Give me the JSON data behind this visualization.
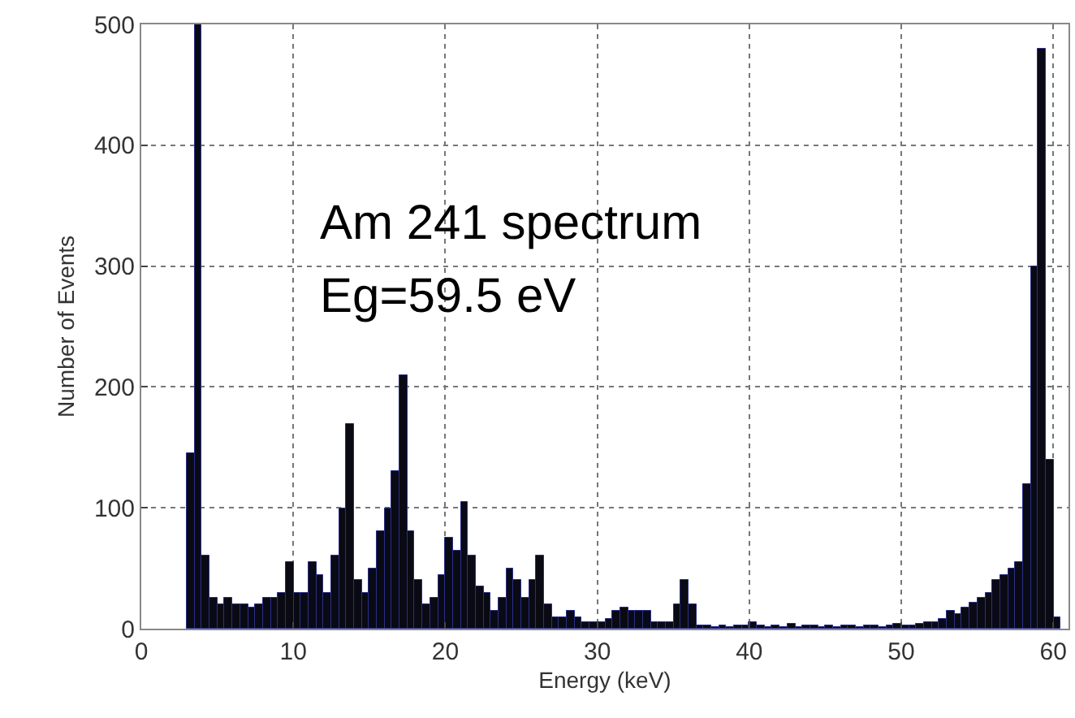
{
  "chart_data": {
    "type": "histogram",
    "xlabel": "Energy (keV)",
    "ylabel": "Number of Events",
    "annotations": [
      "Am 241 spectrum",
      "Eg=59.5 eV"
    ],
    "bins": [
      3,
      3.5,
      4,
      4.5,
      5,
      5.5,
      6,
      6.5,
      7,
      7.5,
      8,
      8.5,
      9,
      9.5,
      10,
      10.5,
      11,
      11.5,
      12,
      12.5,
      13,
      13.5,
      14,
      14.5,
      15,
      15.5,
      16,
      16.5,
      17,
      17.5,
      18,
      18.5,
      19,
      19.5,
      20,
      20.5,
      21,
      21.5,
      22,
      22.5,
      23,
      23.5,
      24,
      24.5,
      25,
      25.5,
      26,
      26.5,
      27,
      27.5,
      28,
      28.5,
      29,
      29.5,
      30,
      30.5,
      31,
      31.5,
      32,
      32.5,
      33,
      33.5,
      34,
      34.5,
      35,
      35.5,
      36,
      36.5,
      37,
      37.5,
      38,
      38.5,
      39,
      39.5,
      40,
      40.5,
      41,
      41.5,
      42,
      42.5,
      43,
      43.5,
      44,
      44.5,
      45,
      45.5,
      46,
      46.5,
      47,
      47.5,
      48,
      48.5,
      49,
      49.5,
      50,
      50.5,
      51,
      51.5,
      52,
      52.5,
      53,
      53.5,
      54,
      54.5,
      55,
      55.5,
      56,
      56.5,
      57,
      57.5,
      58,
      58.5,
      59,
      59.5,
      60,
      60.5
    ],
    "values": [
      145,
      500,
      60,
      25,
      20,
      25,
      20,
      20,
      18,
      20,
      25,
      25,
      30,
      55,
      30,
      30,
      55,
      45,
      30,
      60,
      100,
      170,
      40,
      30,
      50,
      80,
      100,
      130,
      210,
      80,
      40,
      20,
      25,
      45,
      75,
      65,
      105,
      60,
      35,
      30,
      15,
      25,
      50,
      40,
      25,
      40,
      60,
      20,
      10,
      10,
      15,
      10,
      5,
      5,
      5,
      8,
      15,
      18,
      15,
      15,
      15,
      5,
      5,
      5,
      20,
      40,
      20,
      3,
      3,
      2,
      3,
      2,
      3,
      3,
      5,
      3,
      2,
      3,
      2,
      4,
      2,
      3,
      3,
      2,
      3,
      2,
      3,
      3,
      2,
      3,
      3,
      2,
      3,
      4,
      3,
      3,
      4,
      5,
      5,
      8,
      15,
      12,
      18,
      22,
      25,
      30,
      40,
      45,
      50,
      55,
      120,
      300,
      480,
      140,
      10
    ],
    "color": "#0a0a14",
    "xlim": [
      0,
      61
    ],
    "xticks": [
      0,
      10,
      20,
      30,
      40,
      50,
      60
    ],
    "ylim": [
      0,
      500
    ],
    "yticks": [
      0,
      100,
      200,
      300,
      400,
      500
    ],
    "grid": true
  }
}
